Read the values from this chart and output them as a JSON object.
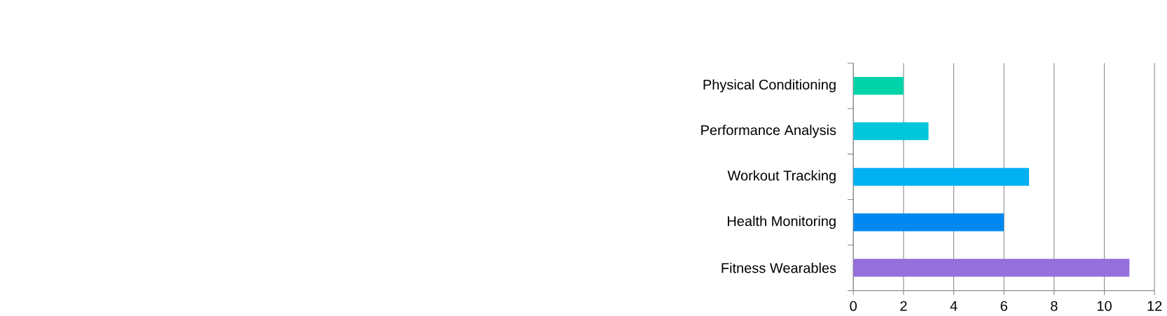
{
  "chart_data": {
    "type": "bar",
    "orientation": "horizontal",
    "categories": [
      "Physical Conditioning",
      "Performance Analysis",
      "Workout Tracking",
      "Health Monitoring",
      "Fitness Wearables"
    ],
    "values": [
      2,
      3,
      7,
      6,
      11
    ],
    "colors": [
      "#00d3a8",
      "#00c6db",
      "#00b0f0",
      "#0088f0",
      "#9370db"
    ],
    "xlim": [
      0,
      12
    ],
    "xticks": [
      0,
      2,
      4,
      6,
      8,
      10,
      12
    ],
    "grid": "x"
  }
}
